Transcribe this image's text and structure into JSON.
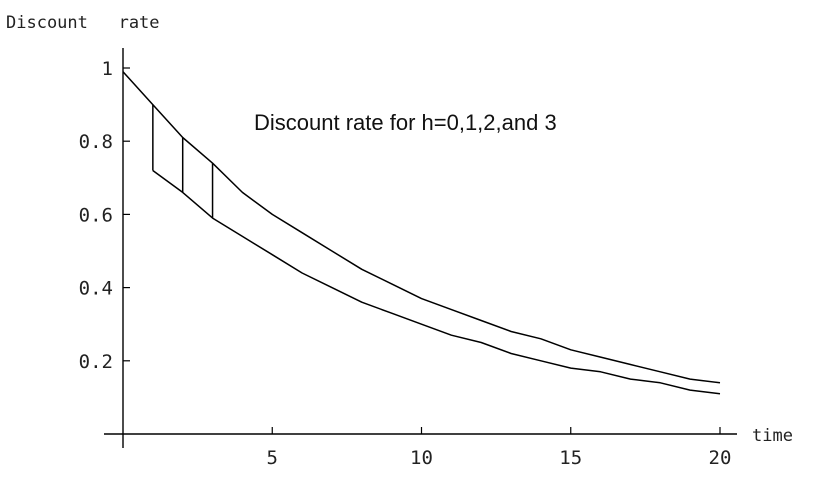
{
  "chart_data": {
    "type": "line",
    "title": "",
    "annotation": "Discount rate for h=0,1,2,and 3",
    "ylabel": "Discount   rate",
    "xlabel": "time",
    "xlim": [
      0,
      20
    ],
    "ylim": [
      0,
      1
    ],
    "x_ticks": [
      5,
      10,
      15,
      20
    ],
    "x_tick_labels": [
      "5",
      "10",
      "15",
      "20"
    ],
    "y_ticks": [
      0.2,
      0.4,
      0.6,
      0.8,
      1
    ],
    "y_tick_labels": [
      "0.2",
      "0.4",
      "0.6",
      "0.8",
      "1"
    ],
    "grid": false,
    "series": [
      {
        "x": [
          0,
          1,
          2,
          3,
          4,
          5,
          6,
          7,
          8,
          9,
          10,
          11,
          12,
          13,
          14,
          15,
          16,
          17,
          18,
          19,
          20
        ],
        "values": [
          0.99,
          0.9,
          0.81,
          0.74,
          0.66,
          0.6,
          0.55,
          0.5,
          0.45,
          0.41,
          0.37,
          0.34,
          0.31,
          0.28,
          0.26,
          0.23,
          0.21,
          0.19,
          0.17,
          0.15,
          0.14
        ]
      },
      {
        "x": [
          1,
          2,
          3,
          4,
          5,
          6,
          7,
          8,
          9,
          10,
          11,
          12,
          13,
          14,
          15,
          16,
          17,
          18,
          19,
          20
        ],
        "values": [
          0.72,
          0.66,
          0.59,
          0.54,
          0.49,
          0.44,
          0.4,
          0.36,
          0.33,
          0.3,
          0.27,
          0.25,
          0.22,
          0.2,
          0.18,
          0.17,
          0.15,
          0.14,
          0.12,
          0.11
        ]
      }
    ],
    "drops": [
      {
        "x": 1,
        "from": 0.9,
        "to": 0.72
      },
      {
        "x": 2,
        "from": 0.81,
        "to": 0.66
      },
      {
        "x": 3,
        "from": 0.74,
        "to": 0.59
      }
    ]
  }
}
